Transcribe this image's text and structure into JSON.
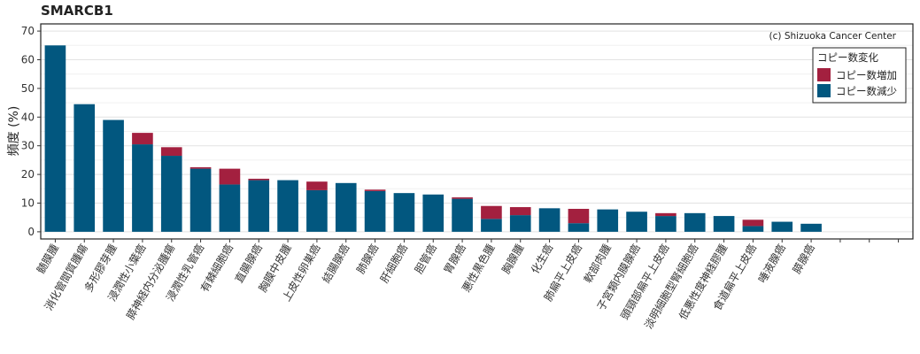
{
  "chart_data": {
    "type": "bar",
    "title": "SMARCB1",
    "ylabel": "頻度 (%)",
    "xlabel": "",
    "ylim": [
      -2.5,
      72.5
    ],
    "yticks": [
      0,
      10,
      20,
      30,
      40,
      50,
      60,
      70
    ],
    "stacked": true,
    "grid": true,
    "legend_position": "top-right",
    "annotation": "(c) Shizuoka Cancer Center",
    "legend_title": "コピー数変化",
    "categories": [
      "髄膜腫",
      "消化管間質腫瘍",
      "多形膠芽腫",
      "浸潤性小葉癌",
      "膵神経内分泌腫瘍",
      "浸潤性乳管癌",
      "有棘細胞癌",
      "直腸腺癌",
      "胸膜中皮腫",
      "上皮性卵巣癌",
      "結腸腺癌",
      "肺腺癌",
      "肝細胞癌",
      "胆管癌",
      "胃腺癌",
      "悪性黒色腫",
      "胸腺腫",
      "化生癌",
      "肺扁平上皮癌",
      "軟部肉腫",
      "子宮類内膜腺癌",
      "頭頸部扁平上皮癌",
      "淡明細胞型腎細胞癌",
      "低悪性度神経膠腫",
      "食道扁平上皮癌",
      "唾液腺癌",
      "膵腺癌",
      "",
      "",
      ""
    ],
    "series": [
      {
        "name": "コピー数減少",
        "color": "#02577f",
        "values": [
          65,
          44.5,
          39,
          30.5,
          26.5,
          22,
          16.5,
          18,
          18,
          14.5,
          17,
          14.2,
          13.5,
          13,
          11.5,
          4.5,
          5.8,
          8.2,
          3,
          7.8,
          7,
          5.5,
          6.5,
          5.5,
          2,
          3.5,
          2.8,
          0,
          0,
          0
        ]
      },
      {
        "name": "コピー数増加",
        "color": "#a3203f",
        "values": [
          0,
          0,
          0,
          4,
          3,
          0.5,
          5.5,
          0.5,
          0,
          3,
          0,
          0.5,
          0,
          0,
          0.5,
          4.5,
          2.8,
          0,
          5,
          0,
          0,
          1,
          0,
          0,
          2.2,
          0,
          0,
          0,
          0,
          0
        ]
      }
    ]
  }
}
